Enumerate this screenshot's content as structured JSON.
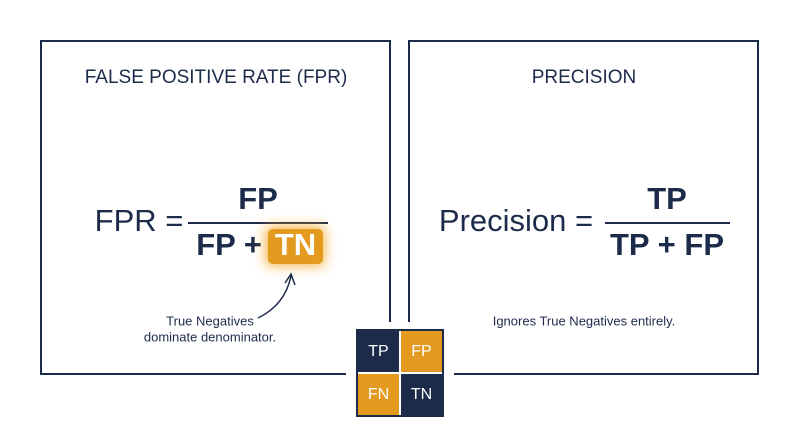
{
  "left_panel": {
    "title": "FALSE POSITIVE RATE (FPR)",
    "formula": {
      "lhs": "FPR =",
      "numerator": "FP",
      "denominator": "FP +",
      "highlight": "TN"
    },
    "annotation": [
      "True Negatives",
      "dominate denominator."
    ]
  },
  "right_panel": {
    "title": "PRECISION",
    "formula": {
      "lhs": "Precision =",
      "numerator": "TP",
      "denominator": "TP + FP"
    },
    "annotation": "Ignores True Negatives entirely."
  },
  "matrix": {
    "cells": [
      [
        "TP",
        "FP"
      ],
      [
        "FN",
        "TN"
      ]
    ]
  }
}
